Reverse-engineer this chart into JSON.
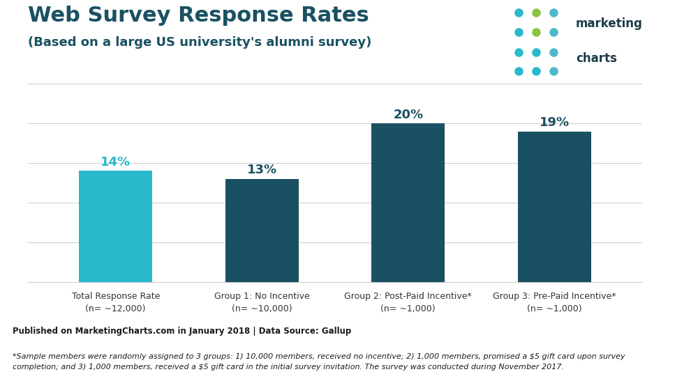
{
  "title_line1": "Web Survey Response Rates",
  "title_line2": "(Based on a large US university's alumni survey)",
  "categories": [
    "Total Response Rate\n(n= ~12,000)",
    "Group 1: No Incentive\n(n= ~10,000)",
    "Group 2: Post-Paid Incentive*\n(n= ~1,000)",
    "Group 3: Pre-Paid Incentive*\n(n= ~1,000)"
  ],
  "values": [
    14,
    13,
    20,
    19
  ],
  "labels": [
    "14%",
    "13%",
    "20%",
    "19%"
  ],
  "bar_colors": [
    "#29b8cc",
    "#1a5162",
    "#1a5162",
    "#1a5162"
  ],
  "background_color": "#ffffff",
  "ylim": [
    0,
    25
  ],
  "footer_bg": "#c8dde6",
  "footer_bold": "Published on MarketingCharts.com in January 2018 | Data Source: Gallup",
  "footer_italic": "*Sample members were randomly assigned to 3 groups: 1) 10,000 members, received no incentive; 2) 1,000 members, promised a $5 gift card upon survey\ncompletion; and 3) 1,000 members, received a $5 gift card in the initial survey invitation. The survey was conducted during November 2017.",
  "title_color": "#1a5162",
  "bar_label_color": "#1a5162",
  "bar_label_color_0": "#29b8cc",
  "axis_label_color": "#333333",
  "grid_color": "#cccccc",
  "logo_dots": [
    [
      "#29b8cc",
      "#8dc63f",
      "#29b8cc"
    ],
    [
      "#29b8cc",
      "#8dc63f",
      "#29b8cc"
    ],
    [
      "#29b8cc",
      "#29b8cc",
      "#29b8cc"
    ],
    [
      "#29b8cc",
      "#29b8cc",
      "#29b8cc"
    ]
  ],
  "logo_text_color": "#1a3a4a"
}
